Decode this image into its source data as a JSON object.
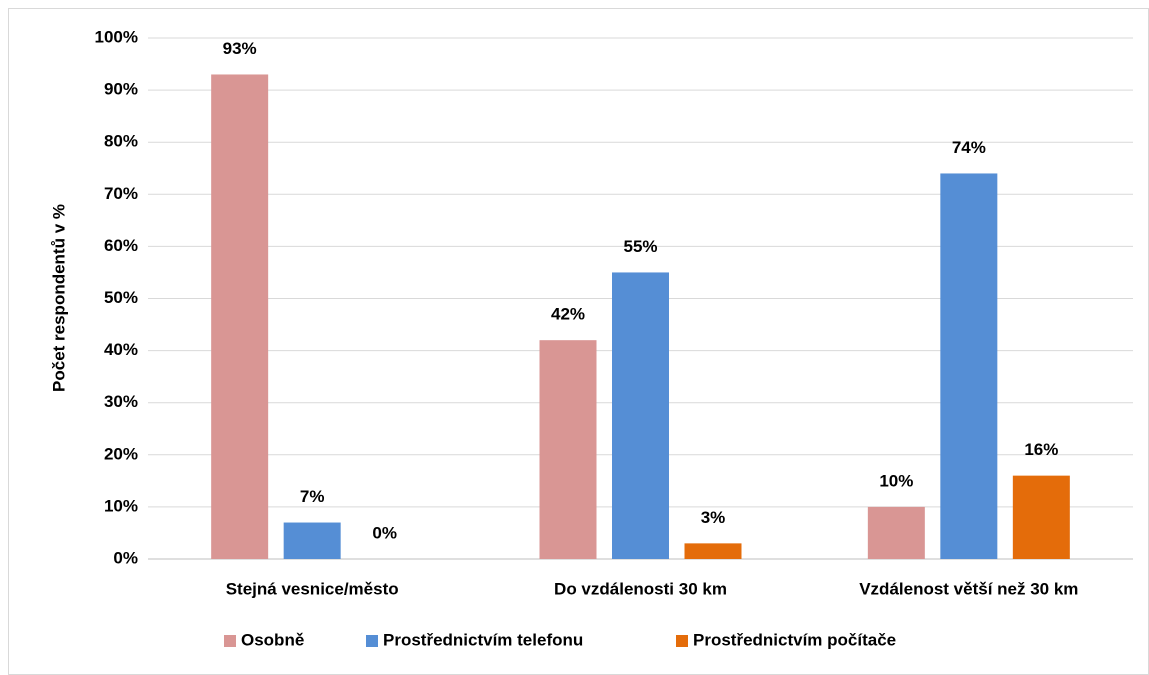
{
  "chart_data": {
    "type": "bar",
    "y_label": "Počet respondentů v %",
    "categories": [
      "Stejná vesnice/město",
      "Do vzdálenosti 30 km",
      "Vzdálenost větší než 30 km"
    ],
    "series": [
      {
        "name": "Osobně",
        "color": "#d99694",
        "values": [
          93,
          42,
          10
        ],
        "value_labels": [
          "93%",
          "42%",
          "10%"
        ]
      },
      {
        "name": "Prostřednictvím telefonu",
        "color": "#558ed5",
        "values": [
          7,
          55,
          74
        ],
        "value_labels": [
          "7%",
          "55%",
          "74%"
        ]
      },
      {
        "name": "Prostřednictvím počítače",
        "color": "#e46c0a",
        "values": [
          0,
          3,
          16
        ],
        "value_labels": [
          "0%",
          "3%",
          "16%"
        ]
      }
    ],
    "ylim": [
      0,
      100
    ],
    "yticks": [
      {
        "value": 0,
        "label": "0%"
      },
      {
        "value": 10,
        "label": "10%"
      },
      {
        "value": 20,
        "label": "20%"
      },
      {
        "value": 30,
        "label": "30%"
      },
      {
        "value": 40,
        "label": "40%"
      },
      {
        "value": 50,
        "label": "50%"
      },
      {
        "value": 60,
        "label": "60%"
      },
      {
        "value": 70,
        "label": "70%"
      },
      {
        "value": 80,
        "label": "80%"
      },
      {
        "value": 90,
        "label": "90%"
      },
      {
        "value": 100,
        "label": "100%"
      }
    ],
    "grid": true,
    "legend": "bottom"
  }
}
